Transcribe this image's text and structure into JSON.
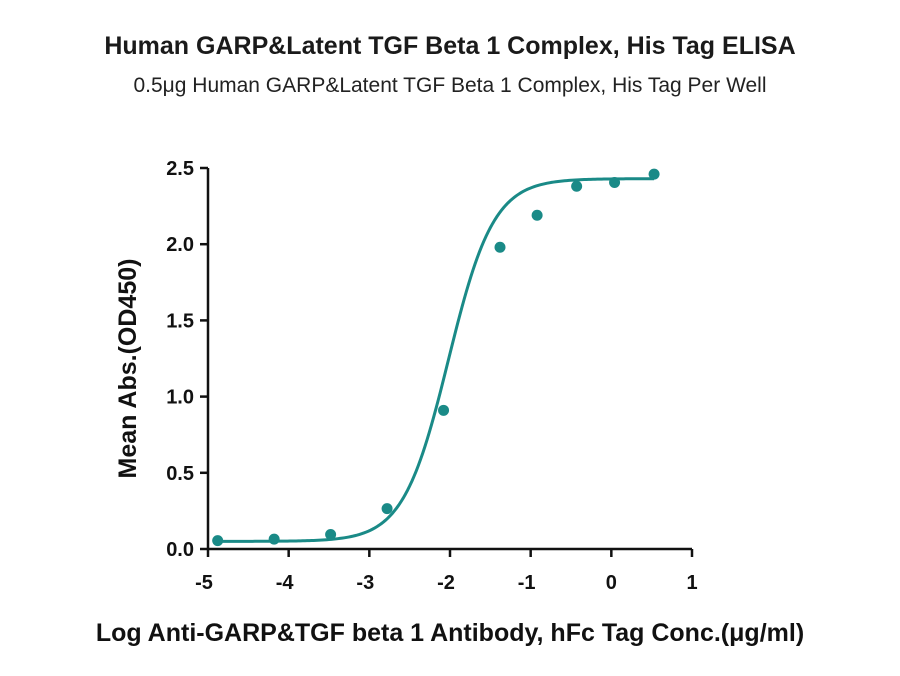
{
  "chart_data": {
    "type": "scatter",
    "title": "Human GARP&Latent TGF Beta 1 Complex, His Tag ELISA",
    "subtitle": "0.5μg Human GARP&Latent TGF Beta 1 Complex, His Tag Per Well",
    "xlabel": "Log Anti-GARP&TGF beta 1 Antibody, hFc Tag Conc.(μg/ml)",
    "ylabel": "Mean Abs.(OD450)",
    "xlim": [
      -5,
      1
    ],
    "ylim": [
      0,
      2.5
    ],
    "x_ticks": [
      "-5",
      "-4",
      "-3",
      "-2",
      "-1",
      "0",
      "1"
    ],
    "y_ticks": [
      "0.0",
      "0.5",
      "1.0",
      "1.5",
      "2.0",
      "2.5"
    ],
    "grid": false,
    "series": [
      {
        "color": "#1a8a87",
        "x": [
          -4.88,
          -4.18,
          -3.48,
          -2.78,
          -2.08,
          -1.38,
          -0.92,
          -0.43,
          0.04,
          0.53
        ],
        "y": [
          0.055,
          0.065,
          0.095,
          0.265,
          0.91,
          1.98,
          2.19,
          2.38,
          2.405,
          2.46
        ],
        "fit": {
          "model": "4PL",
          "bottom": 0.05,
          "top": 2.43,
          "log_ec50": -2.02,
          "hill": 1.55
        }
      }
    ]
  }
}
